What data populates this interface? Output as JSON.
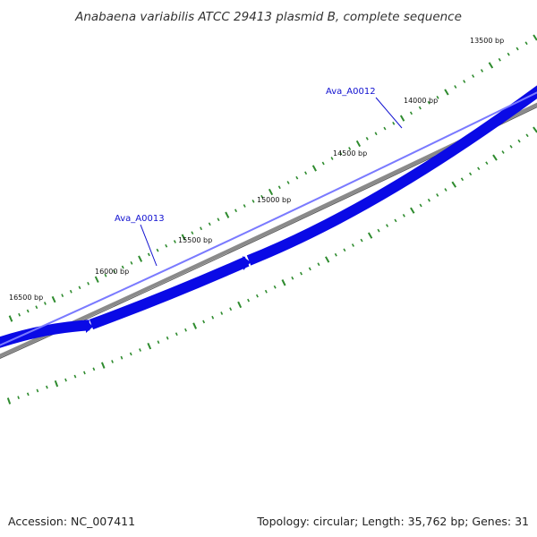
{
  "title": "Anabaena variabilis ATCC 29413 plasmid B, complete sequence",
  "footer": {
    "accession": "Accession: NC_007411",
    "summary": "Topology: circular; Length: 35,762 bp; Genes: 31"
  },
  "colors": {
    "gene_fill": "#0a0ae6",
    "gene_highlight": "#7a7aff",
    "backbone": "#888888",
    "tick": "#2e8b2e",
    "gene_label": "#1010d0"
  },
  "scale_labels": [
    {
      "label": "13500 bp",
      "bp": 13500
    },
    {
      "label": "14000 bp",
      "bp": 14000
    },
    {
      "label": "14500 bp",
      "bp": 14500
    },
    {
      "label": "15000 bp",
      "bp": 15000
    },
    {
      "label": "15500 bp",
      "bp": 15500
    },
    {
      "label": "16000 bp",
      "bp": 16000
    },
    {
      "label": "16500 bp",
      "bp": 16500
    }
  ],
  "genes": [
    {
      "name": "Ava_A0012"
    },
    {
      "name": "Ava_A0013"
    }
  ]
}
